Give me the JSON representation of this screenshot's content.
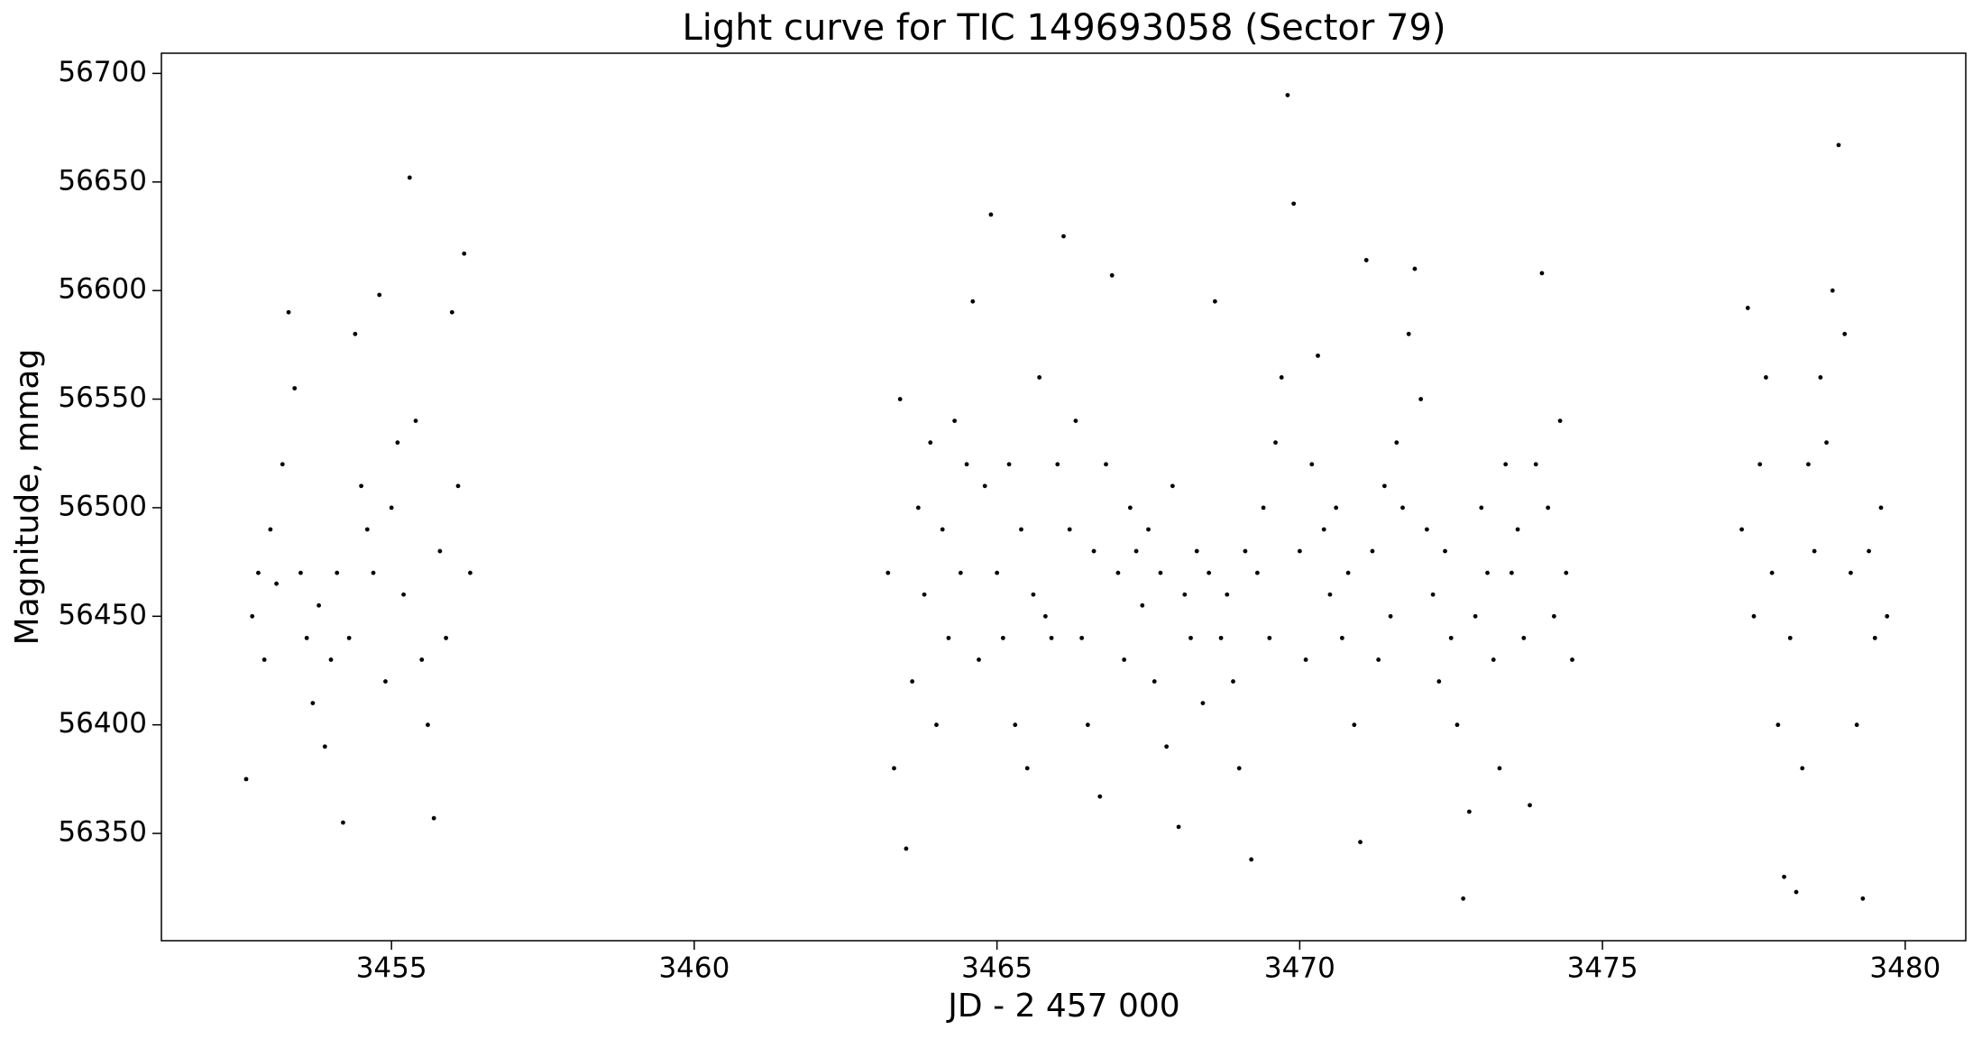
{
  "chart_data": {
    "type": "scatter",
    "title": "Light curve for TIC 149693058 (Sector 79)",
    "x_label": "JD - 2 457 000",
    "y_label": "Magnitude, mmag",
    "color": "#000000",
    "grid": false,
    "xlim": [
      3451.2,
      3481.0
    ],
    "ylim": [
      56300.6,
      56709.3
    ],
    "xticks": [
      3455,
      3460,
      3465,
      3470,
      3475,
      3480
    ],
    "yticks": [
      56350,
      56400,
      56450,
      56500,
      56550,
      56600,
      56650,
      56700
    ],
    "x": [
      3452.6,
      3452.7,
      3452.8,
      3452.9,
      3453.0,
      3453.1,
      3453.2,
      3453.3,
      3453.4,
      3453.5,
      3453.6,
      3453.7,
      3453.8,
      3453.9,
      3454.0,
      3454.1,
      3454.2,
      3454.3,
      3454.4,
      3454.5,
      3454.6,
      3454.7,
      3454.8,
      3454.9,
      3455.0,
      3455.1,
      3455.2,
      3455.3,
      3455.4,
      3455.5,
      3455.6,
      3455.7,
      3455.8,
      3455.9,
      3456.0,
      3456.1,
      3456.2,
      3456.3,
      3463.2,
      3463.3,
      3463.4,
      3463.5,
      3463.6,
      3463.7,
      3463.8,
      3463.9,
      3464.0,
      3464.1,
      3464.2,
      3464.3,
      3464.4,
      3464.5,
      3464.6,
      3464.7,
      3464.8,
      3464.9,
      3465.0,
      3465.1,
      3465.2,
      3465.3,
      3465.4,
      3465.5,
      3465.6,
      3465.7,
      3465.8,
      3465.9,
      3466.0,
      3466.1,
      3466.2,
      3466.3,
      3466.4,
      3466.5,
      3466.6,
      3466.7,
      3466.8,
      3466.9,
      3467.0,
      3467.1,
      3467.2,
      3467.3,
      3467.4,
      3467.5,
      3467.6,
      3467.7,
      3467.8,
      3467.9,
      3468.0,
      3468.1,
      3468.2,
      3468.3,
      3468.4,
      3468.5,
      3468.6,
      3468.7,
      3468.8,
      3468.9,
      3469.0,
      3469.1,
      3469.2,
      3469.3,
      3469.4,
      3469.5,
      3469.6,
      3469.7,
      3469.8,
      3469.9,
      3470.0,
      3470.1,
      3470.2,
      3470.3,
      3470.4,
      3470.5,
      3470.6,
      3470.7,
      3470.8,
      3470.9,
      3471.0,
      3471.1,
      3471.2,
      3471.3,
      3471.4,
      3471.5,
      3471.6,
      3471.7,
      3471.8,
      3471.9,
      3472.0,
      3472.1,
      3472.2,
      3472.3,
      3472.4,
      3472.5,
      3472.6,
      3472.7,
      3472.8,
      3472.9,
      3473.0,
      3473.1,
      3473.2,
      3473.3,
      3473.4,
      3473.5,
      3473.6,
      3473.7,
      3473.8,
      3473.9,
      3474.0,
      3474.1,
      3474.2,
      3474.3,
      3474.4,
      3474.5,
      3477.3,
      3477.4,
      3477.5,
      3477.6,
      3477.7,
      3477.8,
      3477.9,
      3478.0,
      3478.1,
      3478.2,
      3478.3,
      3478.4,
      3478.5,
      3478.6,
      3478.7,
      3478.8,
      3478.9,
      3479.0,
      3479.1,
      3479.2,
      3479.3,
      3479.4,
      3479.5,
      3479.6,
      3479.7
    ],
    "values": [
      56375,
      56450,
      56470,
      56430,
      56490,
      56465,
      56520,
      56590,
      56555,
      56470,
      56440,
      56410,
      56455,
      56390,
      56430,
      56470,
      56355,
      56440,
      56580,
      56510,
      56490,
      56470,
      56598,
      56420,
      56500,
      56530,
      56460,
      56652,
      56540,
      56430,
      56400,
      56357,
      56480,
      56440,
      56590,
      56510,
      56617,
      56470,
      56470,
      56380,
      56550,
      56343,
      56420,
      56500,
      56460,
      56530,
      56400,
      56490,
      56440,
      56540,
      56470,
      56520,
      56595,
      56430,
      56510,
      56635,
      56470,
      56440,
      56520,
      56400,
      56490,
      56380,
      56460,
      56560,
      56450,
      56440,
      56520,
      56625,
      56490,
      56540,
      56440,
      56400,
      56480,
      56367,
      56520,
      56607,
      56470,
      56430,
      56500,
      56480,
      56455,
      56490,
      56420,
      56470,
      56390,
      56510,
      56353,
      56460,
      56440,
      56480,
      56410,
      56470,
      56595,
      56440,
      56460,
      56420,
      56380,
      56480,
      56338,
      56470,
      56500,
      56440,
      56530,
      56560,
      56690,
      56640,
      56480,
      56430,
      56520,
      56570,
      56490,
      56460,
      56500,
      56440,
      56470,
      56400,
      56346,
      56614,
      56480,
      56430,
      56510,
      56450,
      56530,
      56500,
      56580,
      56610,
      56550,
      56490,
      56460,
      56420,
      56480,
      56440,
      56400,
      56320,
      56360,
      56450,
      56500,
      56470,
      56430,
      56380,
      56520,
      56470,
      56490,
      56440,
      56363,
      56520,
      56608,
      56500,
      56450,
      56540,
      56470,
      56430,
      56490,
      56592,
      56450,
      56520,
      56560,
      56470,
      56400,
      56330,
      56440,
      56323,
      56380,
      56520,
      56480,
      56560,
      56530,
      56600,
      56667,
      56580,
      56470,
      56400,
      56320,
      56480,
      56440,
      56500,
      56450
    ]
  }
}
